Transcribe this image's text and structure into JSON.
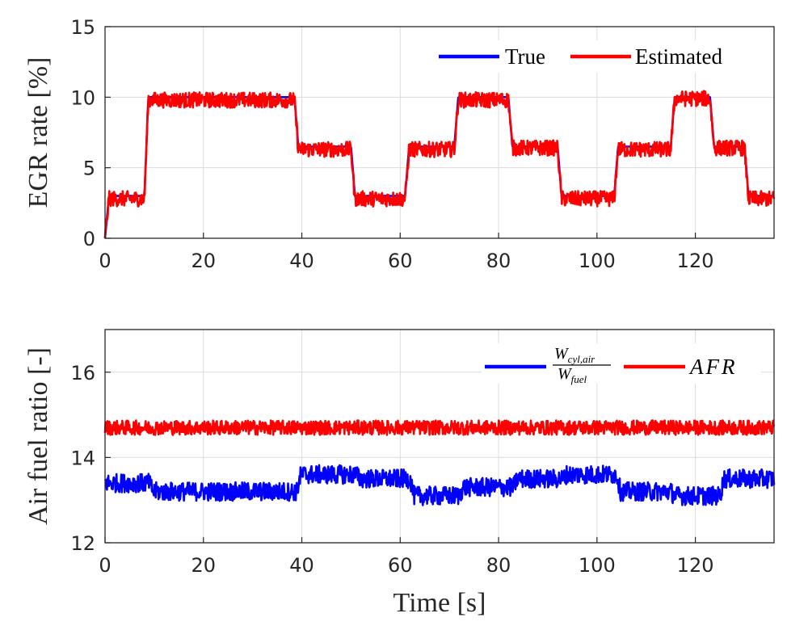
{
  "chart_data": [
    {
      "type": "line",
      "ylabel": "EGR rate [%]",
      "xlabel": "",
      "xlim": [
        0,
        136
      ],
      "ylim": [
        0,
        15
      ],
      "xticks": [
        "0",
        "20",
        "40",
        "60",
        "80",
        "100",
        "120"
      ],
      "yticks": [
        "0",
        "5",
        "10",
        "15"
      ],
      "grid": true,
      "legend_position": "top-right",
      "series": [
        {
          "name": "True",
          "color": "#0000ff",
          "noise": 0,
          "segments": [
            {
              "t": 0,
              "v": 3.0
            },
            {
              "t": 8,
              "v": 10.0
            },
            {
              "t": 38.5,
              "v": 6.5
            },
            {
              "t": 50,
              "v": 3.0
            },
            {
              "t": 61,
              "v": 6.5
            },
            {
              "t": 71,
              "v": 10.0
            },
            {
              "t": 82,
              "v": 6.5
            },
            {
              "t": 92,
              "v": 3.0
            },
            {
              "t": 103.5,
              "v": 6.5
            },
            {
              "t": 115,
              "v": 10.0
            },
            {
              "t": 123,
              "v": 6.5
            },
            {
              "t": 130,
              "v": 3.0
            }
          ]
        },
        {
          "name": "Estimated",
          "color": "#ff0000",
          "noise": 0.55,
          "segments": [
            {
              "t": 0,
              "v": 2.8
            },
            {
              "t": 8,
              "v": 9.8
            },
            {
              "t": 38.5,
              "v": 6.3
            },
            {
              "t": 50,
              "v": 2.8
            },
            {
              "t": 61,
              "v": 6.3
            },
            {
              "t": 71,
              "v": 9.8
            },
            {
              "t": 82,
              "v": 6.4
            },
            {
              "t": 92,
              "v": 2.8
            },
            {
              "t": 103.5,
              "v": 6.3
            },
            {
              "t": 115,
              "v": 9.9
            },
            {
              "t": 123,
              "v": 6.4
            },
            {
              "t": 130,
              "v": 2.8
            }
          ]
        }
      ]
    },
    {
      "type": "line",
      "ylabel": "Air fuel ratio [-]",
      "xlabel": "Time [s]",
      "xlim": [
        0,
        136
      ],
      "ylim": [
        12,
        17
      ],
      "xticks": [
        "0",
        "20",
        "40",
        "60",
        "80",
        "100",
        "120"
      ],
      "yticks": [
        "12",
        "14",
        "16"
      ],
      "grid": true,
      "legend_position": "top-right",
      "series": [
        {
          "name": "W_cyl,air / W_fuel",
          "legend_numerator": "W",
          "legend_numerator_sub": "cyl,air",
          "legend_denominator": "W",
          "legend_denominator_sub": "fuel",
          "color": "#0000ff",
          "noise": 0.22,
          "segments": [
            {
              "t": 0,
              "v": 13.4
            },
            {
              "t": 9,
              "v": 13.2
            },
            {
              "t": 39,
              "v": 13.6
            },
            {
              "t": 51,
              "v": 13.5
            },
            {
              "t": 62,
              "v": 13.1
            },
            {
              "t": 72,
              "v": 13.3
            },
            {
              "t": 83,
              "v": 13.5
            },
            {
              "t": 93,
              "v": 13.6
            },
            {
              "t": 104,
              "v": 13.2
            },
            {
              "t": 115,
              "v": 13.1
            },
            {
              "t": 125,
              "v": 13.5
            }
          ]
        },
        {
          "name": "AFR",
          "color": "#ff0000",
          "noise": 0.17,
          "segments": [
            {
              "t": 0,
              "v": 14.7
            }
          ]
        }
      ]
    }
  ]
}
